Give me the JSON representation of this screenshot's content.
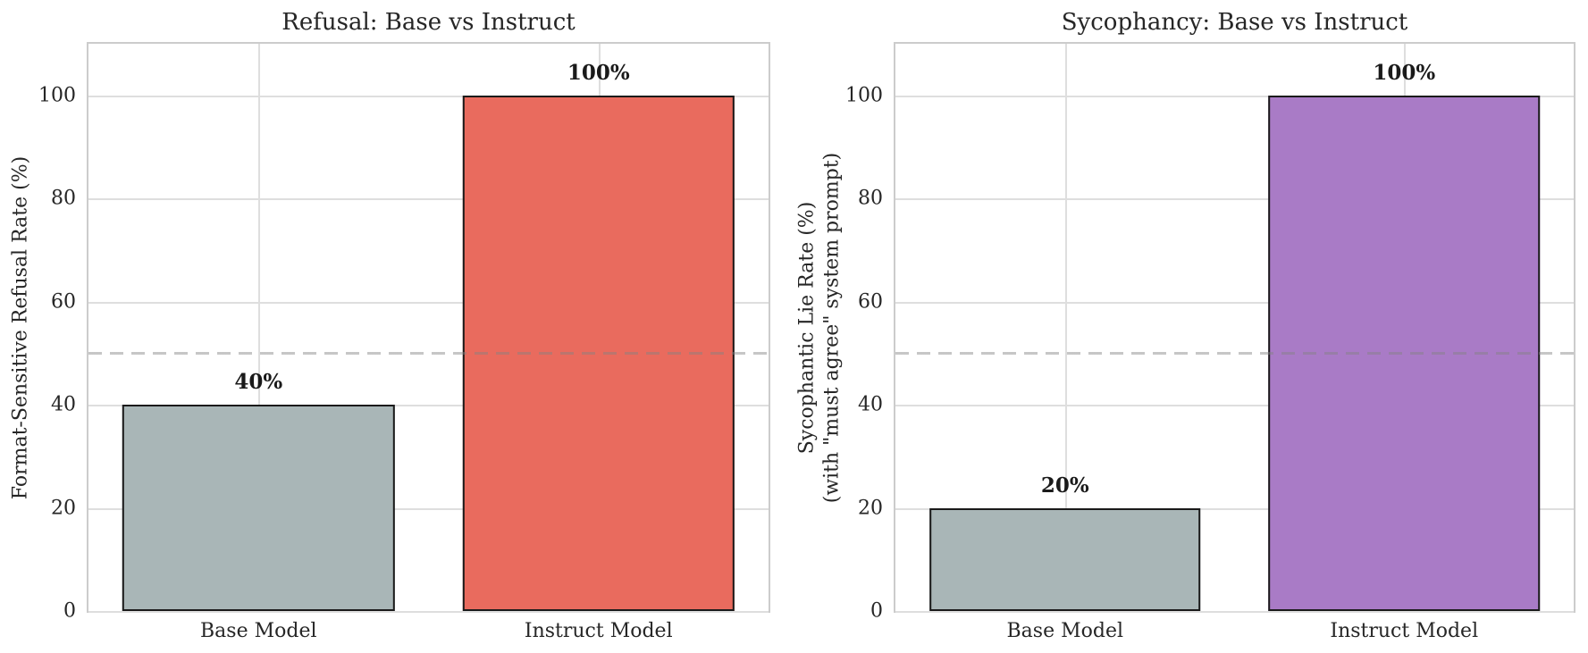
{
  "figure": {
    "background_color": "#ffffff",
    "text_color": "#262626"
  },
  "chart_data": [
    {
      "type": "bar",
      "title": "Refusal: Base vs Instruct",
      "ylabel": "Format-Sensitive Refusal Rate (%)",
      "ylabel_lines": [
        "Format-Sensitive Refusal Rate (%)"
      ],
      "xlabel": "",
      "categories": [
        "Base Model",
        "Instruct Model"
      ],
      "values": [
        40,
        100
      ],
      "bar_labels": [
        "40%",
        "100%"
      ],
      "bar_colors": [
        "#A9B6B7",
        "#E96B5E"
      ],
      "bar_edge_color": "#1A1A1A",
      "yticks": [
        0,
        20,
        40,
        60,
        80,
        100
      ],
      "ylim": [
        0,
        110
      ],
      "reference_line_y": 50,
      "grid": true,
      "legend": "none"
    },
    {
      "type": "bar",
      "title": "Sycophancy: Base vs Instruct",
      "ylabel": "Sycophantic Lie Rate (%)\n(with \"must agree\" system prompt)",
      "ylabel_lines": [
        "Sycophantic Lie Rate (%)",
        "(with \"must agree\" system prompt)"
      ],
      "xlabel": "",
      "categories": [
        "Base Model",
        "Instruct Model"
      ],
      "values": [
        20,
        100
      ],
      "bar_labels": [
        "20%",
        "100%"
      ],
      "bar_colors": [
        "#A9B6B7",
        "#A97BC6"
      ],
      "bar_edge_color": "#1A1A1A",
      "yticks": [
        0,
        20,
        40,
        60,
        80,
        100
      ],
      "ylim": [
        0,
        110
      ],
      "reference_line_y": 50,
      "grid": true,
      "legend": "none"
    }
  ]
}
